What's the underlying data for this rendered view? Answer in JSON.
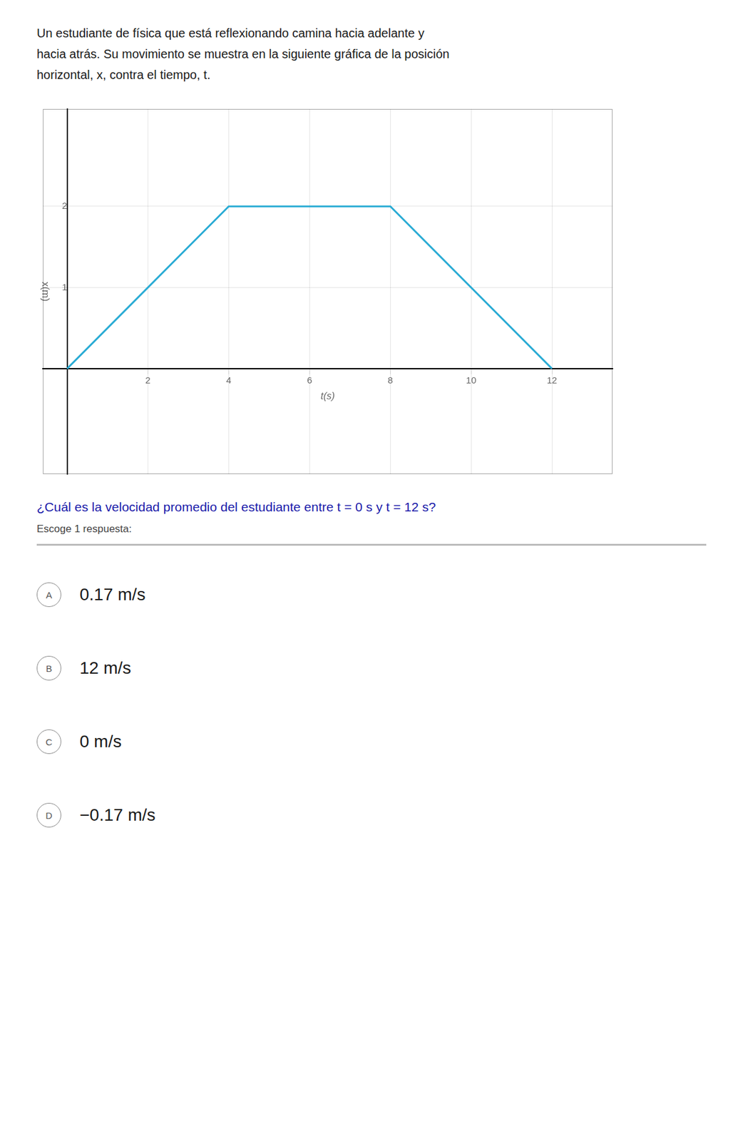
{
  "chart_data": {
    "type": "line",
    "x": [
      0,
      4,
      8,
      12
    ],
    "values": [
      0,
      2,
      2,
      0
    ],
    "color": "#29ABD4",
    "xlabel": "t(s)",
    "ylabel": "x(m)",
    "xlim": [
      -0.6,
      13.5
    ],
    "ylim": [
      -1.3,
      3.2
    ],
    "xticks": [
      2,
      4,
      6,
      8,
      10,
      12
    ],
    "yticks": [
      1,
      2
    ],
    "grid": true,
    "annotations": [
      "Un estudiante de física que está reflexionando camina hacia adelante y",
      "hacia atrás. Su movimiento se muestra en la siguiente gráfica de la posición",
      "horizontal, x, contra el tiempo, t.",
      "¿Cuál es la velocidad promedio del estudiante entre t = 0 s y t = 12 s?",
      "Escoge 1 respuesta:"
    ],
    "choices": [
      {
        "label": "A",
        "text": "0.17 m/s"
      },
      {
        "label": "B",
        "text": "12 m/s"
      },
      {
        "label": "C",
        "text": "0 m/s"
      },
      {
        "label": "D",
        "text": "−0.17 m/s"
      }
    ]
  }
}
